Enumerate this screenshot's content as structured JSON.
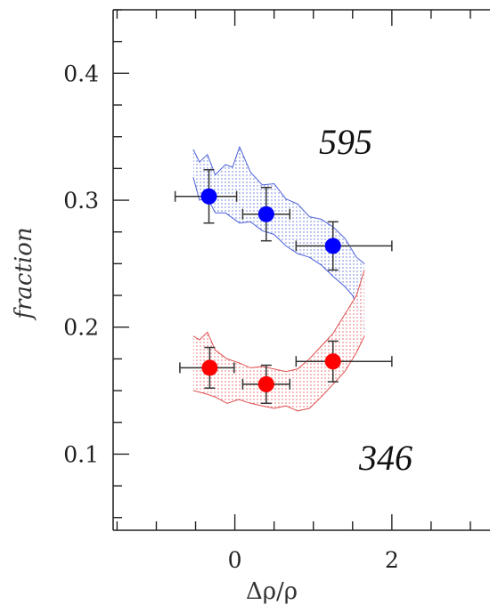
{
  "chart_data": {
    "type": "scatter",
    "xlabel": "Δρ/ρ",
    "ylabel": "fraction",
    "xlim": [
      -1.55,
      3.25
    ],
    "ylim": [
      0.04,
      0.45
    ],
    "x_ticks": [
      0,
      2
    ],
    "x_minor_step": 0.5,
    "y_ticks": [
      0.1,
      0.2,
      0.3,
      0.4
    ],
    "y_minor_step": 0.025,
    "annotations": [
      "595",
      "346"
    ],
    "grid": false,
    "series": [
      {
        "color": "#0000ff",
        "band_color": "#4a5fd8",
        "points": [
          {
            "x": -0.33,
            "y": 0.303,
            "xerr_low": 0.43,
            "xerr_high": 0.0,
            "yerr": 0.021
          },
          {
            "x": 0.4,
            "y": 0.289,
            "xerr_low": 0.3,
            "xerr_high": 0.3,
            "yerr": 0.021
          },
          {
            "x": 1.25,
            "y": 0.264,
            "xerr_low": 0.47,
            "xerr_high": 0.75,
            "yerr": 0.019
          }
        ],
        "band_upper": [
          [
            -0.53,
            0.34
          ],
          [
            -0.45,
            0.33
          ],
          [
            -0.35,
            0.336
          ],
          [
            -0.25,
            0.32
          ],
          [
            -0.12,
            0.328
          ],
          [
            -0.03,
            0.326
          ],
          [
            0.06,
            0.342
          ],
          [
            0.2,
            0.322
          ],
          [
            0.35,
            0.312
          ],
          [
            0.5,
            0.313
          ],
          [
            0.65,
            0.301
          ],
          [
            0.8,
            0.297
          ],
          [
            0.95,
            0.287
          ],
          [
            1.1,
            0.285
          ],
          [
            1.25,
            0.279
          ],
          [
            1.4,
            0.27
          ],
          [
            1.55,
            0.255
          ],
          [
            1.65,
            0.25
          ]
        ],
        "band_lower": [
          [
            -0.53,
            0.318
          ],
          [
            -0.45,
            0.3
          ],
          [
            -0.35,
            0.302
          ],
          [
            -0.25,
            0.29
          ],
          [
            -0.12,
            0.29
          ],
          [
            0.06,
            0.282
          ],
          [
            0.2,
            0.283
          ],
          [
            0.35,
            0.276
          ],
          [
            0.5,
            0.273
          ],
          [
            0.65,
            0.264
          ],
          [
            0.8,
            0.258
          ],
          [
            0.95,
            0.255
          ],
          [
            1.1,
            0.249
          ],
          [
            1.25,
            0.24
          ],
          [
            1.4,
            0.232
          ],
          [
            1.5,
            0.225
          ],
          [
            1.6,
            0.21
          ],
          [
            1.65,
            0.198
          ]
        ]
      },
      {
        "color": "#ff0000",
        "band_color": "#e05050",
        "points": [
          {
            "x": -0.32,
            "y": 0.168,
            "xerr_low": 0.38,
            "xerr_high": 0.0,
            "yerr": 0.016
          },
          {
            "x": 0.4,
            "y": 0.155,
            "xerr_low": 0.3,
            "xerr_high": 0.3,
            "yerr": 0.015
          },
          {
            "x": 1.25,
            "y": 0.173,
            "xerr_low": 0.47,
            "xerr_high": 0.75,
            "yerr": 0.016
          }
        ],
        "band_upper": [
          [
            -0.53,
            0.193
          ],
          [
            -0.45,
            0.19
          ],
          [
            -0.35,
            0.196
          ],
          [
            -0.25,
            0.182
          ],
          [
            -0.1,
            0.175
          ],
          [
            0.05,
            0.172
          ],
          [
            0.2,
            0.168
          ],
          [
            0.35,
            0.169
          ],
          [
            0.5,
            0.167
          ],
          [
            0.65,
            0.165
          ],
          [
            0.8,
            0.167
          ],
          [
            0.95,
            0.175
          ],
          [
            1.1,
            0.185
          ],
          [
            1.25,
            0.195
          ],
          [
            1.4,
            0.21
          ],
          [
            1.55,
            0.225
          ],
          [
            1.65,
            0.245
          ]
        ],
        "band_lower": [
          [
            -0.53,
            0.15
          ],
          [
            -0.4,
            0.148
          ],
          [
            -0.25,
            0.145
          ],
          [
            -0.1,
            0.14
          ],
          [
            0.05,
            0.143
          ],
          [
            0.2,
            0.14
          ],
          [
            0.35,
            0.138
          ],
          [
            0.5,
            0.136
          ],
          [
            0.65,
            0.138
          ],
          [
            0.8,
            0.134
          ],
          [
            0.95,
            0.136
          ],
          [
            1.1,
            0.145
          ],
          [
            1.25,
            0.155
          ],
          [
            1.4,
            0.165
          ],
          [
            1.55,
            0.18
          ],
          [
            1.65,
            0.193
          ]
        ]
      }
    ]
  }
}
